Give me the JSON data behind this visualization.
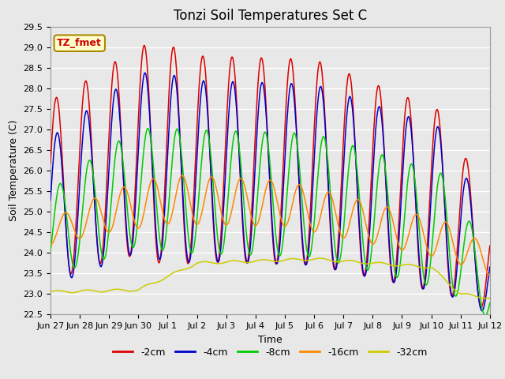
{
  "title": "Tonzi Soil Temperatures Set C",
  "xlabel": "Time",
  "ylabel": "Soil Temperature (C)",
  "ylim": [
    22.5,
    29.5
  ],
  "xtick_labels": [
    "Jun 27",
    "Jun 28",
    "Jun 29",
    "Jun 30",
    "Jul 1",
    "Jul 2",
    "Jul 3",
    "Jul 4",
    "Jul 5",
    "Jul 6",
    "Jul 7",
    "Jul 8",
    "Jul 9",
    "Jul 10",
    "Jul 11",
    "Jul 12"
  ],
  "ytick_vals": [
    22.5,
    23.0,
    23.5,
    24.0,
    24.5,
    25.0,
    25.5,
    26.0,
    26.5,
    27.0,
    27.5,
    28.0,
    28.5,
    29.0,
    29.5
  ],
  "legend_labels": [
    "-2cm",
    "-4cm",
    "-8cm",
    "-16cm",
    "-32cm"
  ],
  "line_colors": [
    "#dd0000",
    "#0000cc",
    "#00cc00",
    "#ff8800",
    "#cccc00"
  ],
  "annotation_text": "TZ_fmet",
  "annotation_bg": "#ffffcc",
  "annotation_border": "#aa8800",
  "annotation_text_color": "#cc0000",
  "bg_color": "#e8e8e8",
  "grid_color": "#ffffff",
  "title_fontsize": 12,
  "axis_fontsize": 9,
  "legend_fontsize": 9
}
